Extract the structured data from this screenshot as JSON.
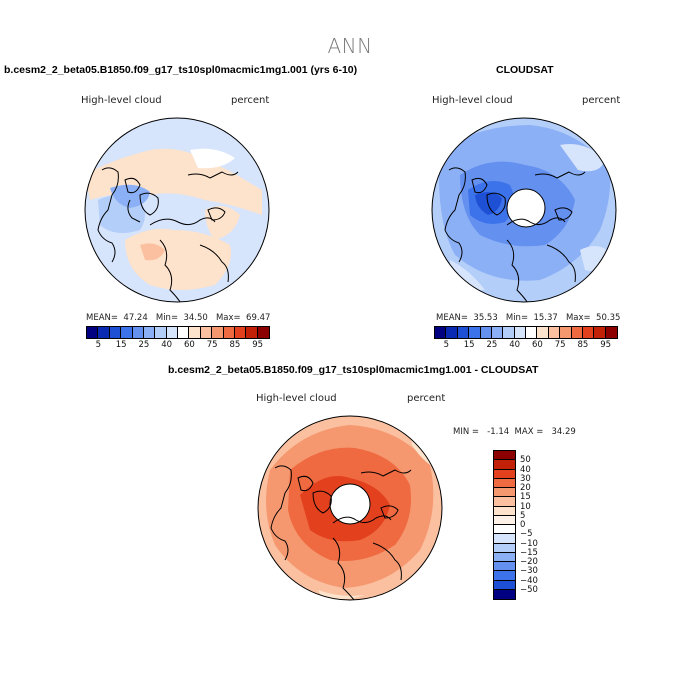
{
  "title": "ANN",
  "panel1": {
    "case_title": "b.cesm2_2_beta05.B1850.f09_g17_ts10spl0macmic1mg1.001 (yrs 6-10)",
    "left_label": "High-level cloud",
    "right_label": "percent",
    "mean_label": "MEAN=",
    "mean_value": "47.24",
    "min_label": "Min=",
    "min_value": "34.50",
    "max_label": "Max=",
    "max_value": "69.47"
  },
  "panel2": {
    "case_title": "CLOUDSAT",
    "left_label": "High-level cloud",
    "right_label": "percent",
    "mean_label": "MEAN=",
    "mean_value": "35.53",
    "min_label": "Min=",
    "min_value": "15.37",
    "max_label": "Max=",
    "max_value": "50.35"
  },
  "panel3": {
    "case_title": "b.cesm2_2_beta05.B1850.f09_g17_ts10spl0macmic1mg1.001 - CLOUDSAT",
    "left_label": "High-level cloud",
    "right_label": "percent",
    "min_label": "MIN =",
    "min_value": "-1.14",
    "max_label": "MAX =",
    "max_value": "34.29"
  },
  "chart_data": [
    {
      "type": "colorbar",
      "name": "absolute-colorbar",
      "levels": [
        5,
        10,
        15,
        20,
        25,
        30,
        40,
        50,
        60,
        70,
        75,
        80,
        85,
        90,
        95
      ],
      "tick_labels": [
        "5",
        "15",
        "25",
        "40",
        "60",
        "75",
        "85",
        "95"
      ],
      "colors": [
        "#000080",
        "#0a2ab4",
        "#1e50d6",
        "#3c72ea",
        "#6490f0",
        "#8cb0f6",
        "#b4cefa",
        "#d6e4fc",
        "#ffffff",
        "#fde2cc",
        "#fac0a0",
        "#f59870",
        "#ef6a40",
        "#e3401e",
        "#c32008",
        "#8c0000"
      ]
    },
    {
      "type": "colorbar",
      "name": "difference-colorbar",
      "levels": [
        50,
        40,
        30,
        20,
        15,
        10,
        5,
        0,
        -5,
        -10,
        -15,
        -20,
        -30,
        -40,
        -50
      ],
      "tick_labels": [
        "50",
        "40",
        "30",
        "20",
        "15",
        "10",
        "5",
        "0",
        "−5",
        "−10",
        "−15",
        "−20",
        "−30",
        "−40",
        "−50"
      ],
      "colors": [
        "#8c0000",
        "#c32008",
        "#e3401e",
        "#ef6a40",
        "#f59870",
        "#fac0a0",
        "#fde2cc",
        "#fdf1e8",
        "#ffffff",
        "#d6e4fc",
        "#b4cefa",
        "#8cb0f6",
        "#6490f0",
        "#3c72ea",
        "#1e50d6",
        "#000080"
      ]
    }
  ]
}
